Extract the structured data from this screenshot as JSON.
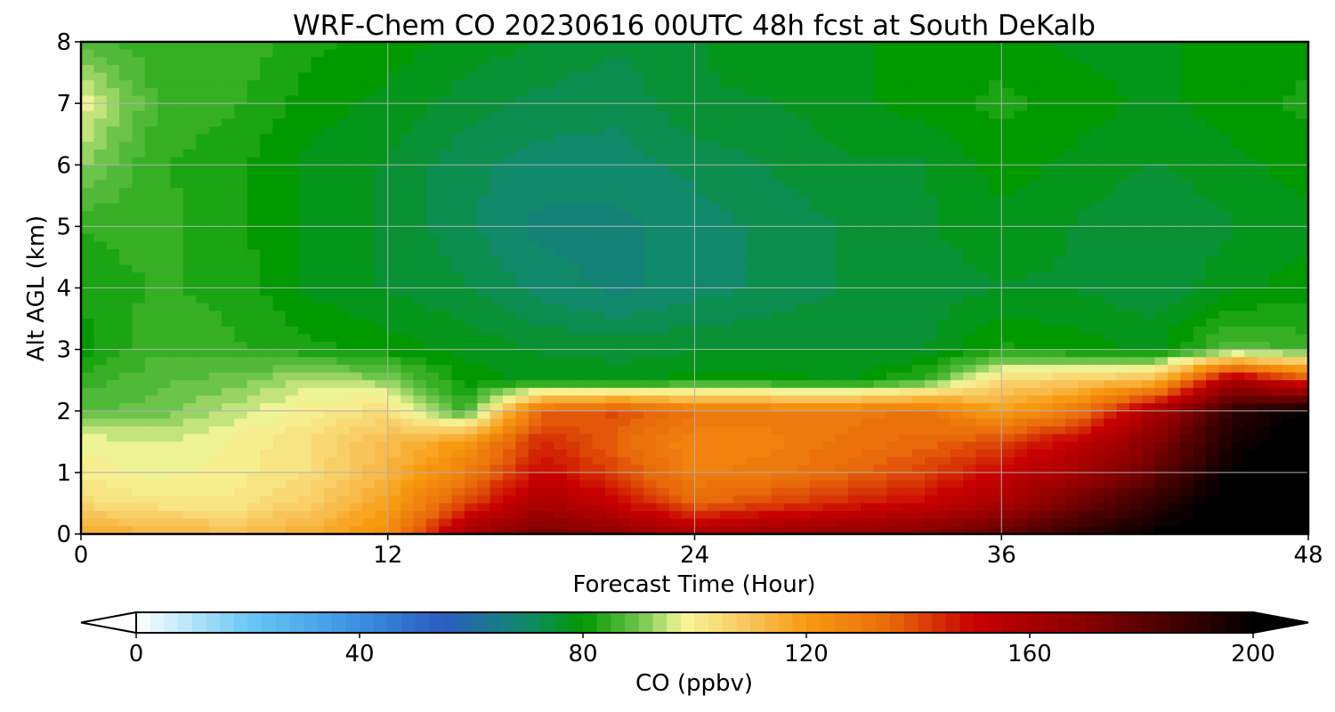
{
  "chart_data": {
    "type": "heatmap",
    "title": "WRF-Chem CO  20230616 00UTC 48h fcst at South DeKalb",
    "xlabel": "Forecast Time (Hour)",
    "ylabel": "Alt AGL (km)",
    "xlim": [
      0,
      48
    ],
    "ylim": [
      0,
      8
    ],
    "x_ticks": [
      "0",
      "12",
      "24",
      "36",
      "48"
    ],
    "y_ticks": [
      "0",
      "1",
      "2",
      "3",
      "4",
      "5",
      "6",
      "7",
      "8"
    ],
    "grid": true,
    "x_hours": [
      0,
      3,
      6,
      9,
      12,
      15,
      18,
      21,
      24,
      27,
      30,
      33,
      36,
      39,
      42,
      45,
      48
    ],
    "alt_km": [
      0,
      0.5,
      1,
      1.5,
      2,
      2.5,
      3,
      4,
      5,
      6,
      7,
      8
    ],
    "z_co_ppbv": [
      [
        118,
        114,
        112,
        116,
        124,
        160,
        175,
        168,
        160,
        165,
        168,
        172,
        180,
        190,
        200,
        205,
        205
      ],
      [
        105,
        102,
        102,
        108,
        118,
        140,
        160,
        150,
        135,
        140,
        145,
        150,
        160,
        175,
        190,
        205,
        205
      ],
      [
        100,
        98,
        100,
        104,
        114,
        128,
        150,
        140,
        128,
        130,
        135,
        140,
        150,
        162,
        178,
        200,
        205
      ],
      [
        98,
        96,
        99,
        104,
        112,
        120,
        145,
        135,
        126,
        128,
        132,
        135,
        140,
        152,
        170,
        195,
        205
      ],
      [
        88,
        90,
        95,
        100,
        104,
        85,
        135,
        140,
        132,
        130,
        130,
        132,
        118,
        130,
        160,
        190,
        200
      ],
      [
        85,
        88,
        90,
        95,
        92,
        80,
        78,
        78,
        80,
        80,
        78,
        85,
        105,
        108,
        112,
        160,
        140
      ],
      [
        80,
        86,
        84,
        82,
        80,
        78,
        76,
        75,
        76,
        76,
        76,
        76,
        82,
        80,
        78,
        88,
        85
      ],
      [
        82,
        84,
        83,
        78,
        76,
        74,
        70,
        68,
        70,
        72,
        74,
        75,
        76,
        76,
        74,
        78,
        80
      ],
      [
        84,
        85,
        82,
        78,
        76,
        72,
        68,
        68,
        70,
        72,
        74,
        76,
        78,
        76,
        74,
        76,
        78
      ],
      [
        92,
        84,
        82,
        78,
        76,
        72,
        70,
        70,
        72,
        74,
        76,
        76,
        80,
        78,
        76,
        78,
        80
      ],
      [
        98,
        86,
        84,
        80,
        78,
        75,
        73,
        72,
        76,
        76,
        78,
        80,
        82,
        80,
        78,
        80,
        82
      ],
      [
        88,
        84,
        86,
        82,
        80,
        78,
        76,
        74,
        76,
        78,
        78,
        80,
        80,
        78,
        78,
        80,
        80
      ]
    ],
    "colorbar": {
      "label": "CO  (ppbv)",
      "range": [
        0,
        200
      ],
      "ticks": [
        "0",
        "40",
        "80",
        "120",
        "160",
        "200"
      ],
      "extend": "both",
      "colormap_stops": [
        {
          "v": 0,
          "c": "#ffffff"
        },
        {
          "v": 20,
          "c": "#6ac8f5"
        },
        {
          "v": 40,
          "c": "#3a8fe0"
        },
        {
          "v": 55,
          "c": "#2b5cc0"
        },
        {
          "v": 70,
          "c": "#108a6a"
        },
        {
          "v": 80,
          "c": "#009900"
        },
        {
          "v": 90,
          "c": "#6cc44a"
        },
        {
          "v": 98,
          "c": "#f7f79a"
        },
        {
          "v": 110,
          "c": "#f8c45a"
        },
        {
          "v": 120,
          "c": "#f89a10"
        },
        {
          "v": 135,
          "c": "#e86a0a"
        },
        {
          "v": 150,
          "c": "#c80000"
        },
        {
          "v": 170,
          "c": "#880000"
        },
        {
          "v": 190,
          "c": "#300000"
        },
        {
          "v": 200,
          "c": "#000000"
        }
      ]
    }
  }
}
